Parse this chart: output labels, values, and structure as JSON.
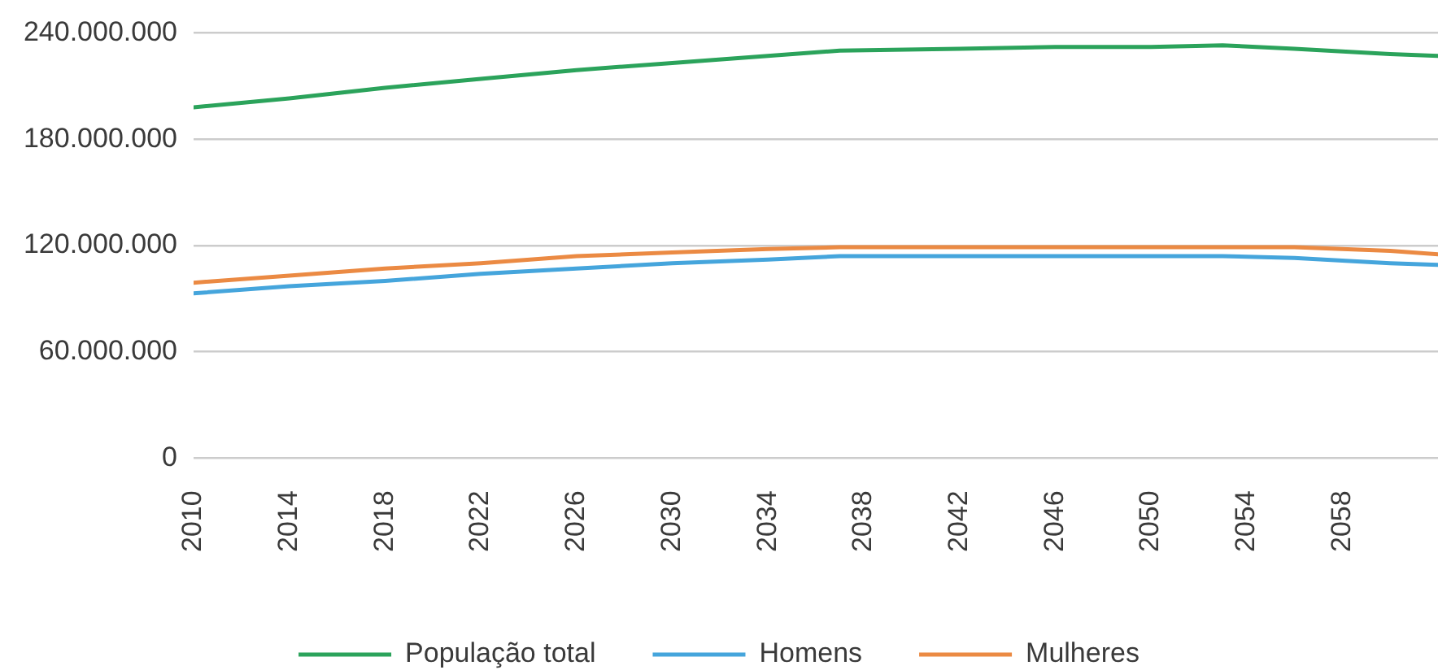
{
  "chart_data": {
    "type": "line",
    "x": [
      2010,
      2014,
      2018,
      2022,
      2026,
      2030,
      2034,
      2037,
      2042,
      2046,
      2050,
      2053,
      2056,
      2060,
      2062
    ],
    "series": [
      {
        "name": "População total",
        "color": "#2ba35b",
        "values": [
          198000000,
          203000000,
          209000000,
          214000000,
          219000000,
          223000000,
          227000000,
          230000000,
          231000000,
          232000000,
          232000000,
          233000000,
          231000000,
          228000000,
          227000000
        ]
      },
      {
        "name": "Homens",
        "color": "#45a5dc",
        "values": [
          93000000,
          97000000,
          100000000,
          104000000,
          107000000,
          110000000,
          112000000,
          114000000,
          114000000,
          114000000,
          114000000,
          114000000,
          113000000,
          110000000,
          109000000
        ]
      },
      {
        "name": "Mulheres",
        "color": "#eb8a43",
        "values": [
          99000000,
          103000000,
          107000000,
          110000000,
          114000000,
          116000000,
          118000000,
          119000000,
          119000000,
          119000000,
          119000000,
          119000000,
          119000000,
          117000000,
          115000000
        ]
      }
    ],
    "xlim": [
      2010,
      2062
    ],
    "xticks": [
      2010,
      2014,
      2018,
      2022,
      2026,
      2030,
      2034,
      2038,
      2042,
      2046,
      2050,
      2054,
      2058
    ],
    "ylim": [
      0,
      240000000
    ],
    "yticks": [
      0,
      {
        "value": 60000000,
        "label": "60.000.000"
      },
      {
        "value": 120000000,
        "label": "120.000.000"
      },
      {
        "value": 180000000,
        "label": "180.000.000"
      },
      {
        "value": 240000000,
        "label": "240.000.000"
      }
    ],
    "grid": "y",
    "legend": "bottom"
  }
}
